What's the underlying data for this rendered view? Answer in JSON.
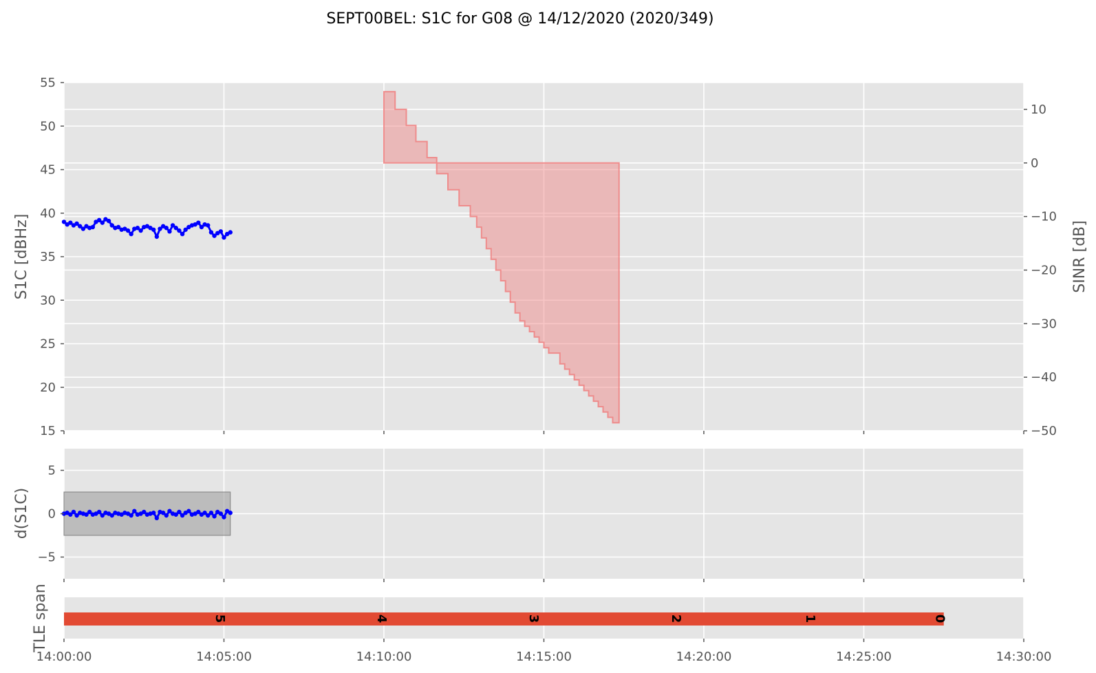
{
  "chart_data": {
    "title": "SEPT00BEL: S1C for G08 @ 14/12/2020 (2020/349)",
    "type": "line",
    "x_ticks": [
      "14:00:00",
      "14:05:00",
      "14:10:00",
      "14:15:00",
      "14:20:00",
      "14:25:00",
      "14:30:00"
    ],
    "x_range_min": [
      0,
      30
    ],
    "panels": {
      "top": {
        "ylabel": "S1C [dBHz]",
        "ylim": [
          15,
          55
        ],
        "y_ticks": [
          "15",
          "20",
          "25",
          "30",
          "35",
          "40",
          "45",
          "50",
          "55"
        ],
        "right_axis": {
          "ylabel": "SINR [dB]",
          "ylim": [
            -50,
            15
          ],
          "y_ticks": [
            "−50",
            "−40",
            "−30",
            "−20",
            "−10",
            "0",
            "10"
          ]
        },
        "s1c_series": {
          "color": "#0000ff",
          "x_min": [
            0.0,
            0.1,
            0.2,
            0.3,
            0.4,
            0.5,
            0.6,
            0.7,
            0.8,
            0.9,
            1.0,
            1.1,
            1.2,
            1.3,
            1.4,
            1.5,
            1.6,
            1.7,
            1.8,
            1.9,
            2.0,
            2.1,
            2.2,
            2.3,
            2.4,
            2.5,
            2.6,
            2.7,
            2.8,
            2.9,
            3.0,
            3.1,
            3.2,
            3.3,
            3.4,
            3.5,
            3.6,
            3.7,
            3.8,
            3.9,
            4.0,
            4.1,
            4.2,
            4.3,
            4.4,
            4.5,
            4.6,
            4.7,
            4.8,
            4.9,
            5.0,
            5.1,
            5.2
          ],
          "values": [
            39.0,
            38.7,
            38.9,
            38.6,
            38.8,
            38.5,
            38.2,
            38.5,
            38.3,
            38.4,
            39.0,
            39.2,
            38.9,
            39.3,
            39.1,
            38.6,
            38.3,
            38.4,
            38.1,
            38.2,
            38.0,
            37.6,
            38.2,
            38.3,
            38.0,
            38.4,
            38.5,
            38.3,
            38.1,
            37.3,
            38.2,
            38.5,
            38.3,
            37.9,
            38.6,
            38.3,
            38.0,
            37.6,
            38.1,
            38.4,
            38.6,
            38.7,
            38.9,
            38.4,
            38.7,
            38.6,
            37.8,
            37.4,
            37.7,
            37.9,
            37.2,
            37.6,
            37.8
          ]
        },
        "sinr_fill": {
          "color": "#f08080",
          "steps": [
            {
              "x0": 10.0,
              "x1": 10.35,
              "v": 13.3
            },
            {
              "x0": 10.35,
              "x1": 10.7,
              "v": 10.0
            },
            {
              "x0": 10.7,
              "x1": 11.0,
              "v": 7.0
            },
            {
              "x0": 11.0,
              "x1": 11.35,
              "v": 4.0
            },
            {
              "x0": 11.35,
              "x1": 11.65,
              "v": 1.0
            },
            {
              "x0": 11.65,
              "x1": 12.0,
              "v": -2.0
            },
            {
              "x0": 12.0,
              "x1": 12.35,
              "v": -5.0
            },
            {
              "x0": 12.35,
              "x1": 12.7,
              "v": -8.0
            },
            {
              "x0": 12.7,
              "x1": 12.9,
              "v": -10.0
            },
            {
              "x0": 12.9,
              "x1": 13.05,
              "v": -12.0
            },
            {
              "x0": 13.05,
              "x1": 13.2,
              "v": -14.0
            },
            {
              "x0": 13.2,
              "x1": 13.35,
              "v": -16.0
            },
            {
              "x0": 13.35,
              "x1": 13.5,
              "v": -18.0
            },
            {
              "x0": 13.5,
              "x1": 13.65,
              "v": -20.0
            },
            {
              "x0": 13.65,
              "x1": 13.8,
              "v": -22.0
            },
            {
              "x0": 13.8,
              "x1": 13.95,
              "v": -24.0
            },
            {
              "x0": 13.95,
              "x1": 14.1,
              "v": -26.0
            },
            {
              "x0": 14.1,
              "x1": 14.25,
              "v": -28.0
            },
            {
              "x0": 14.25,
              "x1": 14.4,
              "v": -29.5
            },
            {
              "x0": 14.4,
              "x1": 14.55,
              "v": -30.5
            },
            {
              "x0": 14.55,
              "x1": 14.7,
              "v": -31.5
            },
            {
              "x0": 14.7,
              "x1": 14.85,
              "v": -32.5
            },
            {
              "x0": 14.85,
              "x1": 15.0,
              "v": -33.5
            },
            {
              "x0": 15.0,
              "x1": 15.15,
              "v": -34.5
            },
            {
              "x0": 15.15,
              "x1": 15.5,
              "v": -35.5
            },
            {
              "x0": 15.5,
              "x1": 15.65,
              "v": -37.5
            },
            {
              "x0": 15.65,
              "x1": 15.8,
              "v": -38.5
            },
            {
              "x0": 15.8,
              "x1": 15.95,
              "v": -39.5
            },
            {
              "x0": 15.95,
              "x1": 16.1,
              "v": -40.5
            },
            {
              "x0": 16.1,
              "x1": 16.25,
              "v": -41.5
            },
            {
              "x0": 16.25,
              "x1": 16.4,
              "v": -42.5
            },
            {
              "x0": 16.4,
              "x1": 16.55,
              "v": -43.5
            },
            {
              "x0": 16.55,
              "x1": 16.7,
              "v": -44.5
            },
            {
              "x0": 16.7,
              "x1": 16.85,
              "v": -45.5
            },
            {
              "x0": 16.85,
              "x1": 17.0,
              "v": -46.5
            },
            {
              "x0": 17.0,
              "x1": 17.15,
              "v": -47.5
            },
            {
              "x0": 17.15,
              "x1": 17.35,
              "v": -48.5
            }
          ],
          "base": 0,
          "end_x_min": 17.35,
          "end_bottom": -47.0,
          "end_top": 0
        }
      },
      "middle": {
        "ylabel": "d(S1C)",
        "ylim": [
          -7.5,
          7.5
        ],
        "y_ticks": [
          "−5",
          "0",
          "5"
        ],
        "band": {
          "x0_min": 0,
          "x1_min": 5.2,
          "y0": -2.5,
          "y1": 2.5,
          "color": "#a0a0a0"
        },
        "d_series": {
          "color": "#0000ff",
          "x_min": [
            0.0,
            0.1,
            0.2,
            0.3,
            0.4,
            0.5,
            0.6,
            0.7,
            0.8,
            0.9,
            1.0,
            1.1,
            1.2,
            1.3,
            1.4,
            1.5,
            1.6,
            1.7,
            1.8,
            1.9,
            2.0,
            2.1,
            2.2,
            2.3,
            2.4,
            2.5,
            2.6,
            2.7,
            2.8,
            2.9,
            3.0,
            3.1,
            3.2,
            3.3,
            3.4,
            3.5,
            3.6,
            3.7,
            3.8,
            3.9,
            4.0,
            4.1,
            4.2,
            4.3,
            4.4,
            4.5,
            4.6,
            4.7,
            4.8,
            4.9,
            5.0,
            5.1,
            5.2
          ],
          "values": [
            0.0,
            0.1,
            -0.1,
            0.2,
            -0.2,
            0.1,
            0.0,
            -0.1,
            0.2,
            -0.1,
            0.0,
            0.2,
            -0.2,
            0.1,
            0.0,
            -0.2,
            0.1,
            0.0,
            -0.1,
            0.1,
            0.0,
            -0.2,
            0.3,
            -0.1,
            0.0,
            0.2,
            -0.1,
            0.0,
            0.1,
            -0.5,
            0.2,
            0.1,
            -0.2,
            0.3,
            0.0,
            -0.1,
            0.2,
            -0.2,
            0.1,
            0.3,
            -0.1,
            0.0,
            0.2,
            -0.1,
            0.1,
            -0.2,
            0.1,
            -0.3,
            0.2,
            0.0,
            -0.4,
            0.3,
            0.1
          ]
        }
      },
      "bottom": {
        "ylabel": "TLE span",
        "bar": {
          "x0_min": 0,
          "x1_min": 27.5,
          "color": "#e24a33"
        },
        "markers": [
          {
            "label": "5",
            "x_min": 4.8
          },
          {
            "label": "4",
            "x_min": 9.85
          },
          {
            "label": "3",
            "x_min": 14.6
          },
          {
            "label": "2",
            "x_min": 19.05
          },
          {
            "label": "1",
            "x_min": 23.25
          },
          {
            "label": "0",
            "x_min": 27.3
          }
        ]
      }
    }
  }
}
